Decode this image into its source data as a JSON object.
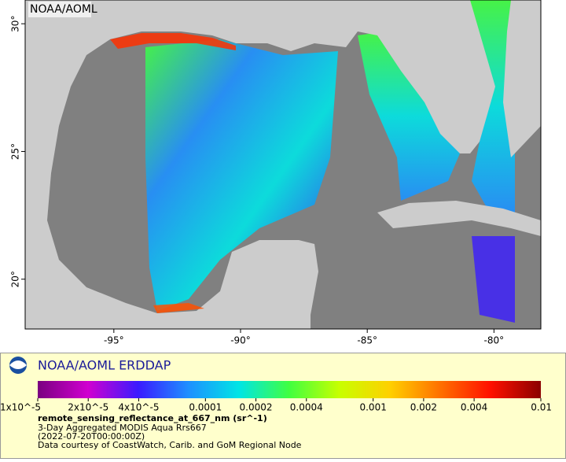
{
  "map": {
    "watermark": "NOAA/AOML",
    "xlim": [
      -98.5,
      -78.15
    ],
    "ylim": [
      18.05,
      30.93
    ],
    "xticks": [
      {
        "value": -95,
        "label": "-95°"
      },
      {
        "value": -90,
        "label": "-90°"
      },
      {
        "value": -85,
        "label": "-85°"
      },
      {
        "value": -80,
        "label": "-80°"
      }
    ],
    "yticks": [
      {
        "value": 30,
        "label": "30°"
      },
      {
        "value": 25,
        "label": "25°"
      },
      {
        "value": 20,
        "label": "20°"
      }
    ]
  },
  "legend": {
    "title": "NOAA/AOML ERDDAP",
    "log_scale": true,
    "colors": [
      "#7a0080",
      "#d000d0",
      "#3a1bff",
      "#1e90ff",
      "#00e5e5",
      "#40ff40",
      "#c8ff00",
      "#ffd000",
      "#ff7000",
      "#ff1000",
      "#8b0000"
    ],
    "clim": [
      1e-05,
      0.01
    ],
    "ticks": [
      {
        "value": 1e-05,
        "label": "1x10^-5"
      },
      {
        "value": 2e-05,
        "label": "2x10^-5"
      },
      {
        "value": 4e-05,
        "label": "4x10^-5"
      },
      0.0001,
      0.0002,
      0.0004,
      0.001,
      0.002,
      0.004,
      0.01
    ],
    "variable": "remote_sensing_reflectance_at_667_nm (sr^-1)",
    "lines": [
      "3-Day Aggregated MODIS Aqua Rrs667",
      "(2022-07-20T00:00:00Z)",
      "Data courtesy of CoastWatch, Carib. and GoM Regional Node"
    ]
  }
}
